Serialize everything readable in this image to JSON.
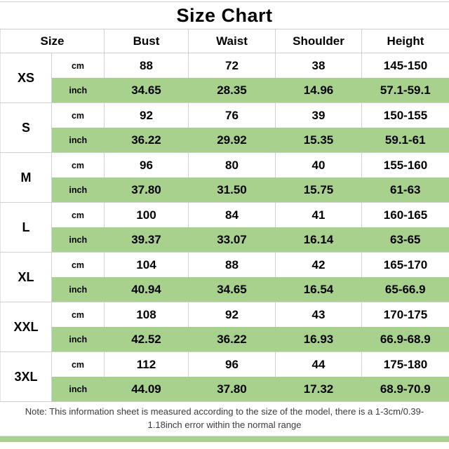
{
  "title": "Size Chart",
  "columns": [
    "Size",
    "Bust",
    "Waist",
    "Shoulder",
    "Height"
  ],
  "units": {
    "cm": "cm",
    "inch": "inch"
  },
  "sizes": [
    {
      "label": "XS",
      "cm": [
        "88",
        "72",
        "38",
        "145-150"
      ],
      "inch": [
        "34.65",
        "28.35",
        "14.96",
        "57.1-59.1"
      ]
    },
    {
      "label": "S",
      "cm": [
        "92",
        "76",
        "39",
        "150-155"
      ],
      "inch": [
        "36.22",
        "29.92",
        "15.35",
        "59.1-61"
      ]
    },
    {
      "label": "M",
      "cm": [
        "96",
        "80",
        "40",
        "155-160"
      ],
      "inch": [
        "37.80",
        "31.50",
        "15.75",
        "61-63"
      ]
    },
    {
      "label": "L",
      "cm": [
        "100",
        "84",
        "41",
        "160-165"
      ],
      "inch": [
        "39.37",
        "33.07",
        "16.14",
        "63-65"
      ]
    },
    {
      "label": "XL",
      "cm": [
        "104",
        "88",
        "42",
        "165-170"
      ],
      "inch": [
        "40.94",
        "34.65",
        "16.54",
        "65-66.9"
      ]
    },
    {
      "label": "XXL",
      "cm": [
        "108",
        "92",
        "43",
        "170-175"
      ],
      "inch": [
        "42.52",
        "36.22",
        "16.93",
        "66.9-68.9"
      ]
    },
    {
      "label": "3XL",
      "cm": [
        "112",
        "96",
        "44",
        "175-180"
      ],
      "inch": [
        "44.09",
        "37.80",
        "17.32",
        "68.9-70.9"
      ]
    }
  ],
  "note": "Note: This information sheet is measured according to the size of the model, there is a 1-3cm/0.39-1.18inch error within the normal range",
  "colors": {
    "highlight_green": "#a9d18e",
    "border_gray": "#d0d0d0"
  }
}
